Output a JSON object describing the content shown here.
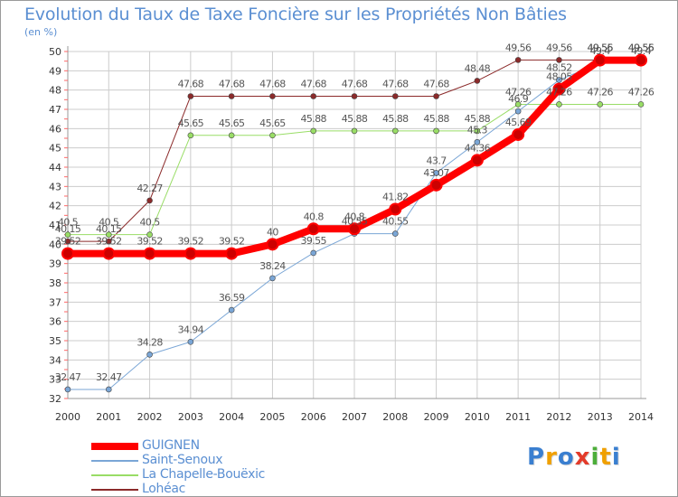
{
  "chart_data": {
    "type": "line",
    "title": "Evolution du Taux de Taxe Foncière sur les Propriétés Non Bâties",
    "ylabel": "(en %)",
    "xlabel": "",
    "x": [
      "2000",
      "2001",
      "2002",
      "2003",
      "2004",
      "2005",
      "2006",
      "2007",
      "2008",
      "2009",
      "2010",
      "2011",
      "2012",
      "2013",
      "2014"
    ],
    "ylim": [
      32,
      50
    ],
    "yticks": [
      "32",
      "33",
      "34",
      "35",
      "36",
      "37",
      "38",
      "39",
      "40",
      "41",
      "42",
      "43",
      "44",
      "45",
      "46",
      "47",
      "48",
      "49",
      "50"
    ],
    "series": [
      {
        "name": "GUIGNEN",
        "color": "#ff0000",
        "width": 8,
        "values": [
          39.52,
          39.52,
          39.52,
          39.52,
          39.52,
          40,
          40.8,
          40.8,
          41.82,
          43.07,
          44.36,
          45.69,
          48.05,
          49.55,
          49.55
        ],
        "labels": [
          "39.52",
          "39.52",
          "39.52",
          "39.52",
          "39.52",
          "40",
          "40.8",
          "40.8",
          "41.82",
          "43.07",
          "44.36",
          "45.69",
          "48.05",
          "49.55",
          "49.55"
        ]
      },
      {
        "name": "Saint-Senoux",
        "color": "#7aa6d6",
        "width": 1,
        "values": [
          32.47,
          32.47,
          34.28,
          34.94,
          36.59,
          38.24,
          39.55,
          40.55,
          40.55,
          43.7,
          45.3,
          46.9,
          48.52,
          49.4,
          49.4
        ],
        "labels": [
          "32.47",
          "32.47",
          "34.28",
          "34.94",
          "36.59",
          "38.24",
          "39.55",
          "40.55",
          "40.55",
          "43.7",
          "45.3",
          "46.9",
          "48.52",
          "49.4",
          "49.4"
        ]
      },
      {
        "name": "La Chapelle-Bouëxic",
        "color": "#99dd66",
        "width": 1,
        "values": [
          40.5,
          40.5,
          40.5,
          45.65,
          45.65,
          45.65,
          45.88,
          45.88,
          45.88,
          45.88,
          45.88,
          47.26,
          47.26,
          47.26,
          47.26
        ],
        "labels": [
          "40.5",
          "40.5",
          "40.5",
          "45.65",
          "45.65",
          "45.65",
          "45.88",
          "45.88",
          "45.88",
          "45.88",
          "45.88",
          "47.26",
          "47.26",
          "47.26",
          "47.26"
        ]
      },
      {
        "name": "Lohéac",
        "color": "#8b2a2a",
        "width": 1,
        "values": [
          40.15,
          40.15,
          42.27,
          47.68,
          47.68,
          47.68,
          47.68,
          47.68,
          47.68,
          47.68,
          48.48,
          49.56,
          49.56,
          49.56,
          49.56
        ],
        "labels": [
          "40.15",
          "40.15",
          "42.27",
          "47.68",
          "47.68",
          "47.68",
          "47.68",
          "47.68",
          "47.68",
          "47.68",
          "48.48",
          "49.56",
          "49.56",
          "49.56",
          "49.56"
        ]
      }
    ]
  },
  "colors": {
    "text": "#5b8fd2",
    "grid": "#cccccc",
    "axis": "#999999"
  },
  "logo": {
    "letters": [
      "P",
      "r",
      "o",
      "x",
      "i",
      "t",
      "i"
    ],
    "colors": [
      "#3a7fd0",
      "#f0a000",
      "#3a7fd0",
      "#e33b2a",
      "#4cae3a",
      "#f0a000",
      "#3a7fd0"
    ]
  }
}
